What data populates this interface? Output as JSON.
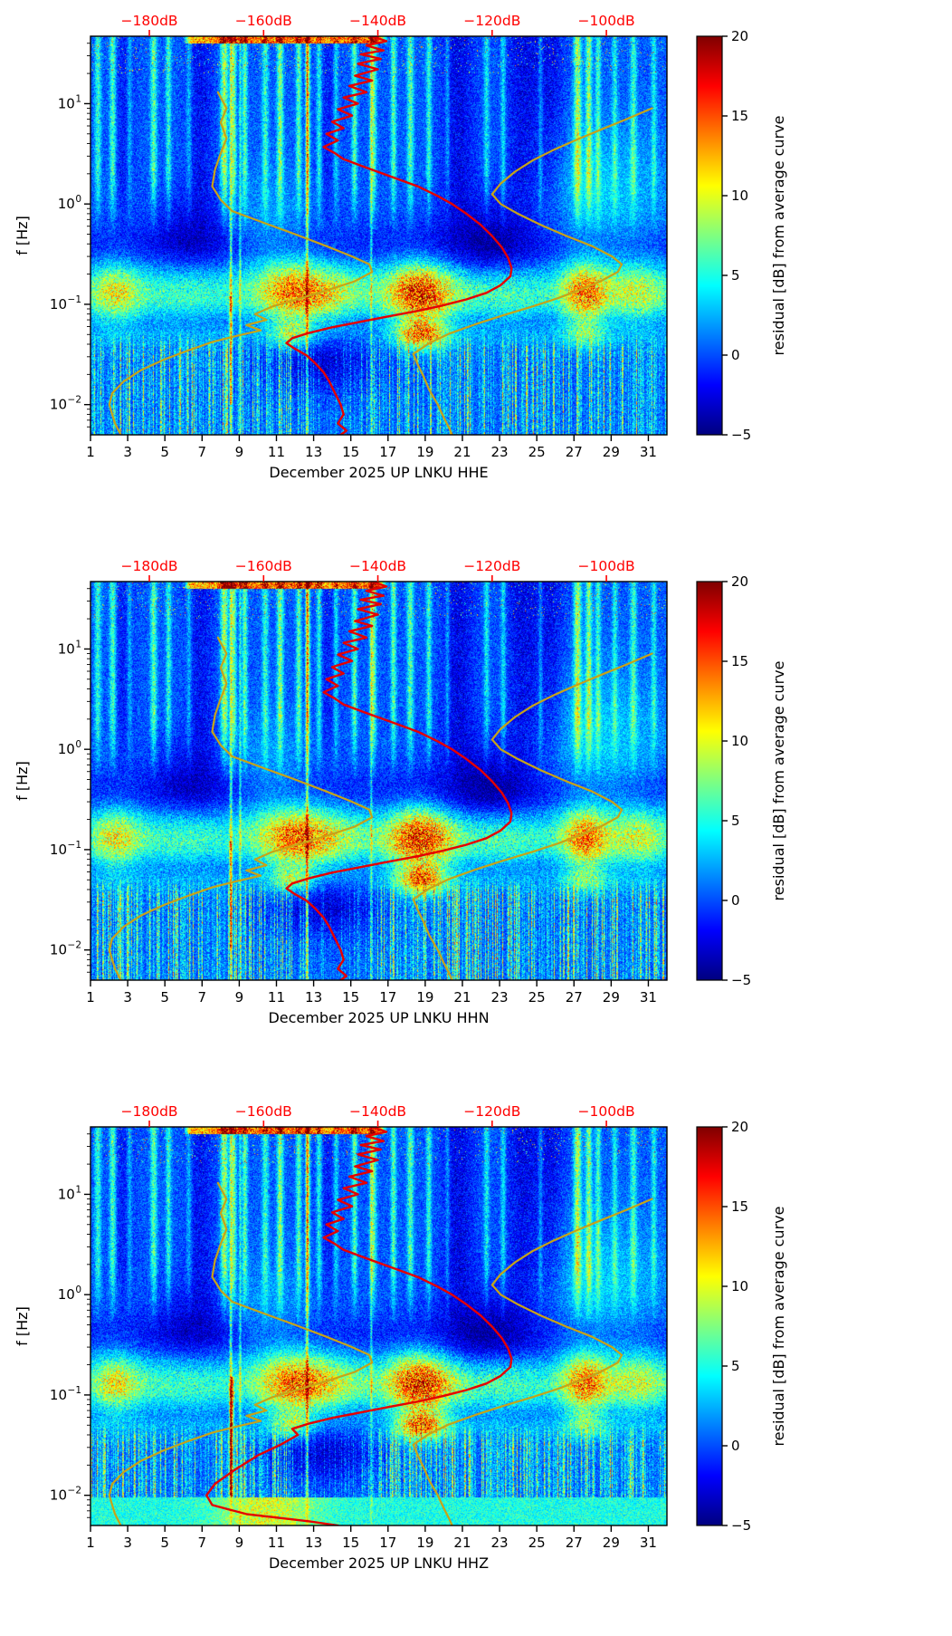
{
  "chart_data": {
    "type": "heatmap",
    "figure_kind": "seismic-noise-residual-spectrograms",
    "subplots": [
      {
        "channel": "HHE",
        "xlabel": "December 2025 UP LNKU  HHE",
        "seed": 11
      },
      {
        "channel": "HHN",
        "xlabel": "December 2025 UP LNKU  HHN",
        "seed": 23
      },
      {
        "channel": "HHZ",
        "xlabel": "December 2025 UP LNKU  HHZ",
        "seed": 37,
        "bottom_band": {
          "f_max_hz": 0.0095,
          "amp": 5
        },
        "extra_vlines": [
          [
            8.6,
            10,
            0.07,
            0.005,
            0.15
          ]
        ],
        "red_tail_override": [
          [
            0.04,
            -154
          ],
          [
            0.032,
            -157
          ],
          [
            0.025,
            -161
          ],
          [
            0.018,
            -165
          ],
          [
            0.013,
            -168.5
          ],
          [
            0.01,
            -170
          ],
          [
            0.008,
            -169
          ],
          [
            0.0065,
            -163
          ],
          [
            0.0055,
            -152
          ],
          [
            0.005,
            -147
          ]
        ]
      }
    ],
    "x_axis": {
      "range_days": [
        1,
        32
      ],
      "tick_days": [
        1,
        3,
        5,
        7,
        9,
        11,
        13,
        15,
        17,
        19,
        21,
        23,
        25,
        27,
        29,
        31
      ],
      "tick_labels": [
        "1",
        "3",
        "5",
        "7",
        "9",
        "11",
        "13",
        "15",
        "17",
        "19",
        "21",
        "23",
        "25",
        "27",
        "29",
        "31"
      ]
    },
    "y_axis": {
      "label": "f [Hz]",
      "scale": "log",
      "range_hz": [
        0.005,
        47
      ],
      "tick_values_hz": [
        10,
        1,
        0.1,
        0.01
      ],
      "tick_exponents": [
        "1",
        "0",
        "−1",
        "−2"
      ]
    },
    "top_axis": {
      "color": "#ff0000",
      "range_db": [
        -190.3,
        -89.4
      ],
      "ticks_db": [
        -180,
        -160,
        -140,
        -120,
        -100
      ],
      "tick_labels": [
        "−180dB",
        "−160dB",
        "−140dB",
        "−120dB",
        "−100dB"
      ]
    },
    "colorbar": {
      "label": "residual [dB] from average curve",
      "range": [
        -5,
        20
      ],
      "tick_values": [
        20,
        15,
        10,
        5,
        0,
        -5
      ],
      "tick_labels": [
        "20",
        "15",
        "10",
        "5",
        "0",
        "−5"
      ],
      "colormap": "jet",
      "jet_stops": [
        [
          0,
          [
            0,
            0,
            127
          ]
        ],
        [
          0.125,
          [
            0,
            0,
            255
          ]
        ],
        [
          0.375,
          [
            0,
            255,
            255
          ]
        ],
        [
          0.625,
          [
            255,
            255,
            0
          ]
        ],
        [
          0.875,
          [
            255,
            0,
            0
          ]
        ],
        [
          1,
          [
            127,
            0,
            0
          ]
        ]
      ]
    },
    "overlays": [
      {
        "name": "average-psd-curve",
        "color": "#e50000",
        "width": 2.4,
        "points_f_db": [
          [
            47,
            -141
          ],
          [
            42,
            -138.5
          ],
          [
            38,
            -142
          ],
          [
            34,
            -139
          ],
          [
            31,
            -143
          ],
          [
            28,
            -139.5
          ],
          [
            25,
            -143.5
          ],
          [
            22,
            -140
          ],
          [
            19,
            -144
          ],
          [
            17,
            -141
          ],
          [
            15,
            -145
          ],
          [
            13,
            -142
          ],
          [
            11.5,
            -146
          ],
          [
            10,
            -143.5
          ],
          [
            8.8,
            -147
          ],
          [
            7.6,
            -144.5
          ],
          [
            6.6,
            -148
          ],
          [
            5.7,
            -146
          ],
          [
            5,
            -149
          ],
          [
            4.3,
            -147
          ],
          [
            3.7,
            -149.5
          ],
          [
            3.2,
            -147.5
          ],
          [
            2.8,
            -146
          ],
          [
            2.3,
            -142
          ],
          [
            1.9,
            -138
          ],
          [
            1.5,
            -133
          ],
          [
            1.2,
            -129.5
          ],
          [
            1.0,
            -127
          ],
          [
            0.8,
            -124.5
          ],
          [
            0.62,
            -122
          ],
          [
            0.48,
            -120
          ],
          [
            0.37,
            -118.3
          ],
          [
            0.29,
            -117.2
          ],
          [
            0.23,
            -116.6
          ],
          [
            0.19,
            -116.8
          ],
          [
            0.155,
            -118.5
          ],
          [
            0.13,
            -121
          ],
          [
            0.112,
            -124.5
          ],
          [
            0.098,
            -128.5
          ],
          [
            0.086,
            -133
          ],
          [
            0.076,
            -138
          ],
          [
            0.067,
            -143
          ],
          [
            0.059,
            -148
          ],
          [
            0.052,
            -152
          ],
          [
            0.046,
            -155
          ],
          [
            0.041,
            -156
          ],
          [
            0.036,
            -154.5
          ],
          [
            0.031,
            -152.5
          ],
          [
            0.026,
            -151
          ],
          [
            0.021,
            -149.5
          ],
          [
            0.017,
            -148.5
          ],
          [
            0.013,
            -147.5
          ],
          [
            0.01,
            -146.5
          ],
          [
            0.008,
            -146
          ],
          [
            0.0065,
            -147
          ],
          [
            0.0055,
            -145.5
          ],
          [
            0.005,
            -146.5
          ]
        ]
      },
      {
        "name": "low-noise-model-curve",
        "color": "#c7a318",
        "width": 2.2,
        "points_f_db": [
          [
            13,
            -168
          ],
          [
            9,
            -166.5
          ],
          [
            6.5,
            -167.5
          ],
          [
            4.5,
            -166.5
          ],
          [
            3.2,
            -167.5
          ],
          [
            2.2,
            -168.5
          ],
          [
            1.5,
            -169
          ],
          [
            1.1,
            -167.5
          ],
          [
            0.85,
            -165.5
          ],
          [
            0.65,
            -160
          ],
          [
            0.5,
            -154.5
          ],
          [
            0.38,
            -149
          ],
          [
            0.3,
            -144.5
          ],
          [
            0.25,
            -141.5
          ],
          [
            0.21,
            -141
          ],
          [
            0.17,
            -144
          ],
          [
            0.14,
            -148.5
          ],
          [
            0.115,
            -153.5
          ],
          [
            0.095,
            -158.5
          ],
          [
            0.08,
            -161.5
          ],
          [
            0.07,
            -159.5
          ],
          [
            0.062,
            -163
          ],
          [
            0.055,
            -160.5
          ],
          [
            0.048,
            -165
          ],
          [
            0.042,
            -169
          ],
          [
            0.035,
            -173
          ],
          [
            0.028,
            -177.5
          ],
          [
            0.022,
            -181.5
          ],
          [
            0.017,
            -184.5
          ],
          [
            0.013,
            -186.5
          ],
          [
            0.01,
            -187
          ],
          [
            0.008,
            -186.5
          ],
          [
            0.0065,
            -186
          ],
          [
            0.005,
            -185
          ]
        ]
      },
      {
        "name": "high-noise-model-curve",
        "color": "#c7a318",
        "width": 2.2,
        "points_f_db": [
          [
            9,
            -92
          ],
          [
            7,
            -96.5
          ],
          [
            5.5,
            -101
          ],
          [
            4.3,
            -105.5
          ],
          [
            3.4,
            -109.5
          ],
          [
            2.7,
            -113
          ],
          [
            2.1,
            -116
          ],
          [
            1.6,
            -118.5
          ],
          [
            1.25,
            -120
          ],
          [
            1.0,
            -118.5
          ],
          [
            0.8,
            -115.5
          ],
          [
            0.62,
            -111.5
          ],
          [
            0.48,
            -107
          ],
          [
            0.38,
            -102.5
          ],
          [
            0.3,
            -99
          ],
          [
            0.25,
            -97.3
          ],
          [
            0.21,
            -98
          ],
          [
            0.17,
            -101
          ],
          [
            0.14,
            -104.5
          ],
          [
            0.115,
            -108.5
          ],
          [
            0.095,
            -113
          ],
          [
            0.078,
            -118
          ],
          [
            0.063,
            -123
          ],
          [
            0.051,
            -127.5
          ],
          [
            0.041,
            -131
          ],
          [
            0.032,
            -133.8
          ],
          [
            0.025,
            -133
          ],
          [
            0.019,
            -132
          ],
          [
            0.014,
            -131
          ],
          [
            0.01,
            -129.5
          ],
          [
            0.0075,
            -128.5
          ],
          [
            0.0058,
            -127.5
          ],
          [
            0.005,
            -127
          ]
        ]
      }
    ],
    "heatmap_features": {
      "base_db": 0.3,
      "speckle_db": 2.0,
      "hf_stripes": {
        "f_fade_hz": [
          0.45,
          2.0
        ],
        "stripes": [
          [
            1.4,
            5,
            0.12
          ],
          [
            2.2,
            6,
            0.12
          ],
          [
            3.1,
            3,
            0.1
          ],
          [
            4.4,
            6,
            0.12
          ],
          [
            5.2,
            5,
            0.1
          ],
          [
            6.3,
            3,
            0.1
          ],
          [
            8.2,
            8,
            0.14
          ],
          [
            8.7,
            7,
            0.1
          ],
          [
            9.3,
            6,
            0.1
          ],
          [
            10.4,
            5,
            0.12
          ],
          [
            11.2,
            7,
            0.12
          ],
          [
            12.2,
            6,
            0.1
          ],
          [
            12.7,
            7,
            0.08
          ],
          [
            13.3,
            5,
            0.1
          ],
          [
            14.2,
            4,
            0.1
          ],
          [
            15.2,
            6,
            0.1
          ],
          [
            16.2,
            7,
            0.12
          ],
          [
            17.3,
            6,
            0.1
          ],
          [
            18.2,
            6,
            0.12
          ],
          [
            19.2,
            5,
            0.1
          ],
          [
            20.2,
            3,
            0.08
          ],
          [
            22.3,
            4,
            0.1
          ],
          [
            23.2,
            4,
            0.1
          ],
          [
            25.2,
            3,
            0.08
          ],
          [
            27.2,
            8,
            0.14
          ],
          [
            27.8,
            7,
            0.12
          ],
          [
            28.3,
            5,
            0.1
          ],
          [
            29.2,
            4,
            0.1
          ],
          [
            30.2,
            5,
            0.12
          ],
          [
            31.3,
            4,
            0.1
          ],
          [
            6.9,
            -2,
            0.5
          ],
          [
            20.8,
            -2.5,
            0.6
          ],
          [
            24.3,
            -2.5,
            0.7
          ],
          [
            25.8,
            -2,
            0.5
          ],
          [
            2.8,
            -1.5,
            0.4
          ],
          [
            13.8,
            -1.5,
            0.4
          ]
        ]
      },
      "full_height_lines": [
        [
          8.55,
          7,
          0.05
        ],
        [
          9.05,
          5,
          0.04
        ],
        [
          12.65,
          8,
          0.05
        ],
        [
          16.1,
          5,
          0.04
        ]
      ],
      "microseism_band": {
        "center_hz": 0.13,
        "sigma_decades": 0.22,
        "base_amp": 3,
        "day_profile": [
          [
            2.3,
            7,
            1.0
          ],
          [
            6,
            3,
            2
          ],
          [
            11.8,
            9,
            1.4
          ],
          [
            14,
            5,
            1.5
          ],
          [
            18.7,
            13,
            1.3
          ],
          [
            23,
            4,
            2
          ],
          [
            27.6,
            10,
            0.9
          ],
          [
            30.5,
            6,
            1.2
          ]
        ]
      },
      "secondary_band": {
        "center_hz": 0.05,
        "sigma_decades": 0.1,
        "base_amp": 1,
        "day_profile": [
          [
            11.8,
            6,
            0.8
          ],
          [
            18.8,
            11,
            0.9
          ],
          [
            27.6,
            4,
            0.8
          ]
        ]
      },
      "dark_patches": [
        [
          22.5,
          2.0,
          0.4,
          0.35,
          -3.5
        ],
        [
          13.5,
          2.2,
          0.028,
          0.22,
          -3.5
        ],
        [
          6.5,
          1.5,
          0.5,
          0.3,
          -2.5
        ]
      ],
      "mid_glow": [
        [
          28.5,
          2.5,
          1.2,
          0.5,
          3
        ],
        [
          10.5,
          1.5,
          0.6,
          0.4,
          2
        ]
      ],
      "row_adjust": [
        [
          0.35,
          0.18,
          -1.8
        ],
        [
          0.07,
          0.08,
          -1.2
        ]
      ],
      "low_freq_streaks": {
        "f_max_hz": 0.033,
        "amp": 6,
        "quiet": [
          12,
          16,
          0.3
        ]
      },
      "top_specks": {
        "f_min_hz": 20,
        "density": 0.03,
        "amp": 13
      },
      "top_edge_band": {
        "f_min_hz": 40,
        "days": [
          6,
          17
        ],
        "amp": 16
      },
      "extra_vlines": [
        [
          8.55,
          5,
          0.06,
          0.01,
          0.12
        ]
      ]
    }
  }
}
